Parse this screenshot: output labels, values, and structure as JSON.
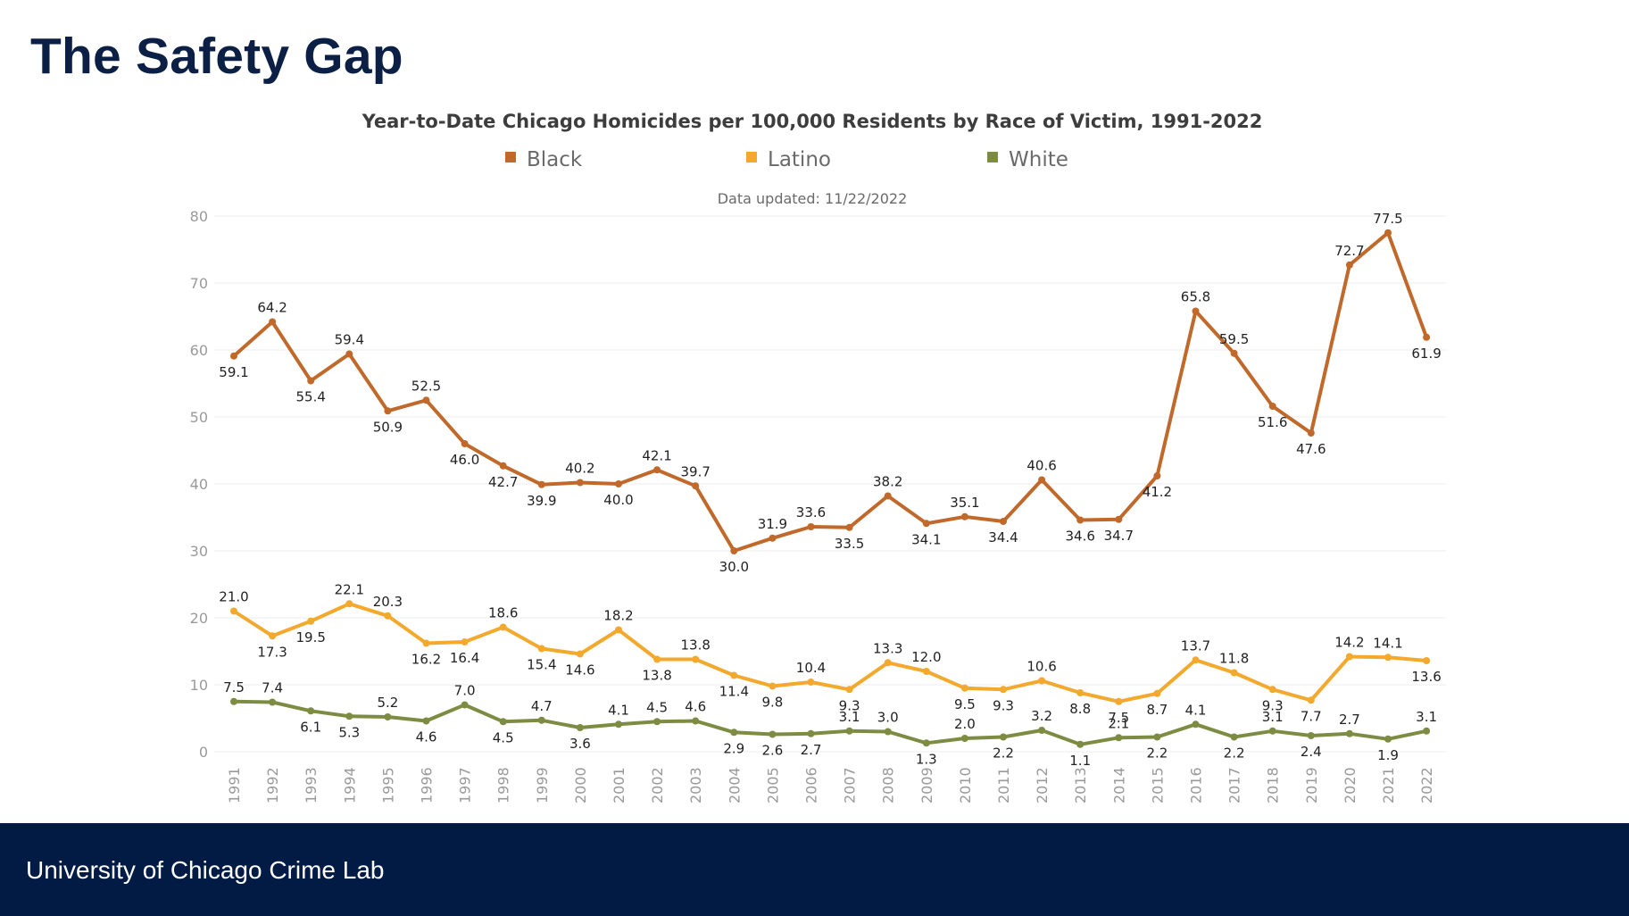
{
  "slide": {
    "title": "The Safety Gap",
    "footer": "University of Chicago Crime Lab"
  },
  "colors": {
    "black_series": "#c0692b",
    "latino_series": "#f3a92d",
    "white_series": "#7d8c42",
    "footer_bg": "#011b45",
    "title_text": "#0c1f44"
  },
  "chart_data": {
    "type": "line",
    "title": "Year-to-Date Chicago Homicides per 100,000 Residents by Race of Victim, 1991-2022",
    "subtitle": "Data updated: 11/22/2022",
    "xlabel": "",
    "ylabel": "",
    "ylim": [
      0,
      80
    ],
    "yticks": [
      0,
      10,
      20,
      30,
      40,
      50,
      60,
      70,
      80
    ],
    "grid": true,
    "legend_position": "top-center",
    "x": [
      "1991",
      "1992",
      "1993",
      "1994",
      "1995",
      "1996",
      "1997",
      "1998",
      "1999",
      "2000",
      "2001",
      "2002",
      "2003",
      "2004",
      "2005",
      "2006",
      "2007",
      "2008",
      "2009",
      "2010",
      "2011",
      "2012",
      "2013",
      "2014",
      "2015",
      "2016",
      "2017",
      "2018",
      "2019",
      "2020",
      "2021",
      "2022"
    ],
    "series": [
      {
        "name": "Black",
        "color": "#c0692b",
        "values": [
          59.1,
          64.2,
          55.4,
          59.4,
          50.9,
          52.5,
          46.0,
          42.7,
          39.9,
          40.2,
          40.0,
          42.1,
          39.7,
          30.0,
          31.9,
          33.6,
          33.5,
          38.2,
          34.1,
          35.1,
          34.4,
          40.6,
          34.6,
          34.7,
          41.2,
          65.8,
          59.5,
          51.6,
          47.6,
          72.7,
          77.5,
          61.9
        ]
      },
      {
        "name": "Latino",
        "color": "#f3a92d",
        "values": [
          21.0,
          17.3,
          19.5,
          22.1,
          20.3,
          16.2,
          16.4,
          18.6,
          15.4,
          14.6,
          18.2,
          13.8,
          13.8,
          11.4,
          9.8,
          10.4,
          9.3,
          13.3,
          12.0,
          9.5,
          9.3,
          10.6,
          8.8,
          7.5,
          8.7,
          13.7,
          11.8,
          9.3,
          7.7,
          14.2,
          14.1,
          13.6
        ]
      },
      {
        "name": "White",
        "color": "#7d8c42",
        "values": [
          7.5,
          7.4,
          6.1,
          5.3,
          5.2,
          4.6,
          7.0,
          4.5,
          4.7,
          3.6,
          4.1,
          4.5,
          4.6,
          2.9,
          2.6,
          2.7,
          3.1,
          3.0,
          1.3,
          2.0,
          2.2,
          3.2,
          1.1,
          2.1,
          2.2,
          4.1,
          2.2,
          3.1,
          2.4,
          2.7,
          1.9,
          3.1
        ]
      }
    ]
  }
}
